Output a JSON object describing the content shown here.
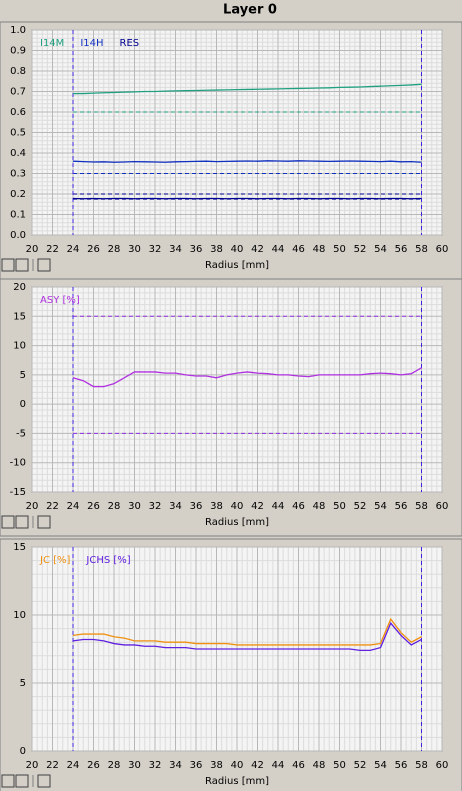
{
  "header": {
    "title": "Layer 0"
  },
  "chart_data": [
    {
      "type": "line",
      "xlabel": "Radius [mm]",
      "x": [
        24,
        25,
        26,
        27,
        28,
        29,
        30,
        31,
        32,
        33,
        34,
        35,
        36,
        37,
        38,
        39,
        40,
        41,
        42,
        43,
        44,
        45,
        46,
        47,
        48,
        49,
        50,
        51,
        52,
        53,
        54,
        55,
        56,
        57,
        58
      ],
      "series": [
        {
          "name": "I14M",
          "color": "#20a080",
          "values": [
            0.69,
            0.69,
            0.692,
            0.694,
            0.695,
            0.697,
            0.698,
            0.7,
            0.7,
            0.702,
            0.703,
            0.704,
            0.705,
            0.706,
            0.707,
            0.708,
            0.709,
            0.71,
            0.711,
            0.712,
            0.713,
            0.714,
            0.715,
            0.716,
            0.717,
            0.718,
            0.72,
            0.721,
            0.722,
            0.724,
            0.726,
            0.728,
            0.73,
            0.732,
            0.735
          ]
        },
        {
          "name": "I14H",
          "color": "#1030c0",
          "values": [
            0.36,
            0.358,
            0.356,
            0.357,
            0.355,
            0.356,
            0.358,
            0.357,
            0.356,
            0.355,
            0.357,
            0.358,
            0.359,
            0.36,
            0.358,
            0.359,
            0.36,
            0.361,
            0.36,
            0.362,
            0.361,
            0.36,
            0.362,
            0.361,
            0.36,
            0.359,
            0.36,
            0.361,
            0.36,
            0.359,
            0.358,
            0.36,
            0.357,
            0.358,
            0.355
          ]
        },
        {
          "name": "RES",
          "color": "#000090",
          "values": [
            0.178,
            0.177,
            0.178,
            0.177,
            0.178,
            0.178,
            0.177,
            0.178,
            0.178,
            0.177,
            0.178,
            0.178,
            0.177,
            0.178,
            0.178,
            0.177,
            0.178,
            0.178,
            0.177,
            0.178,
            0.178,
            0.177,
            0.178,
            0.178,
            0.177,
            0.178,
            0.178,
            0.177,
            0.178,
            0.178,
            0.177,
            0.178,
            0.178,
            0.177,
            0.178
          ]
        }
      ],
      "reference_lines": [
        {
          "value": 0.6,
          "color": "#20a080"
        },
        {
          "value": 0.3,
          "color": "#1030c0"
        },
        {
          "value": 0.2,
          "color": "#000090"
        },
        {
          "value": 0.175,
          "color": "#000090"
        }
      ],
      "x_markers": [
        24,
        58
      ],
      "marker_color": "#4020e0",
      "xlim": [
        20,
        60
      ],
      "xticks": [
        20,
        22,
        24,
        26,
        28,
        30,
        32,
        34,
        36,
        38,
        40,
        42,
        44,
        46,
        48,
        50,
        52,
        54,
        56,
        58,
        60
      ],
      "ylim": [
        0,
        1
      ],
      "yticks": [
        {
          "value": 0,
          "label": "0.0"
        },
        0.1,
        0.2,
        0.3,
        0.4,
        0.5,
        0.6,
        0.7,
        0.8,
        0.9,
        {
          "value": 1,
          "label": "1.0"
        }
      ],
      "grid": true
    },
    {
      "type": "line",
      "xlabel": "Radius [mm]",
      "x": [
        24,
        25,
        26,
        27,
        28,
        29,
        30,
        31,
        32,
        33,
        34,
        35,
        36,
        37,
        38,
        39,
        40,
        41,
        42,
        43,
        44,
        45,
        46,
        47,
        48,
        49,
        50,
        51,
        52,
        53,
        54,
        55,
        56,
        57,
        58
      ],
      "series": [
        {
          "name": "ASY [%]",
          "color": "#b030e0",
          "values": [
            4.5,
            4,
            3,
            3,
            3.5,
            4.5,
            5.5,
            5.5,
            5.5,
            5.3,
            5.3,
            5,
            4.8,
            4.8,
            4.5,
            5,
            5.3,
            5.5,
            5.3,
            5.2,
            5,
            5,
            4.8,
            4.7,
            5,
            5,
            5,
            5,
            5,
            5.2,
            5.3,
            5.2,
            5,
            5.2,
            6.2
          ]
        }
      ],
      "reference_lines": [
        {
          "value": 15,
          "color": "#9030e0"
        },
        {
          "value": -5,
          "color": "#9030e0"
        }
      ],
      "x_markers": [
        24,
        58
      ],
      "marker_color": "#4020e0",
      "xlim": [
        20,
        60
      ],
      "xticks": [
        20,
        22,
        24,
        26,
        28,
        30,
        32,
        34,
        36,
        38,
        40,
        42,
        44,
        46,
        48,
        50,
        52,
        54,
        56,
        58,
        60
      ],
      "ylim": [
        -15,
        20
      ],
      "yticks": [
        -15,
        -10,
        -5,
        0,
        5,
        10,
        15,
        20
      ],
      "grid": true
    },
    {
      "type": "line",
      "xlabel": "Radius [mm]",
      "x": [
        24,
        25,
        26,
        27,
        28,
        29,
        30,
        31,
        32,
        33,
        34,
        35,
        36,
        37,
        38,
        39,
        40,
        41,
        42,
        43,
        44,
        45,
        46,
        47,
        48,
        49,
        50,
        51,
        52,
        53,
        54,
        55,
        56,
        57,
        58
      ],
      "series": [
        {
          "name": "JC [%]",
          "color": "#f09010",
          "values": [
            8.5,
            8.6,
            8.6,
            8.6,
            8.4,
            8.3,
            8.1,
            8.1,
            8.1,
            8.0,
            8.0,
            8.0,
            7.9,
            7.9,
            7.9,
            7.9,
            7.8,
            7.8,
            7.8,
            7.8,
            7.8,
            7.8,
            7.8,
            7.8,
            7.8,
            7.8,
            7.8,
            7.8,
            7.8,
            7.8,
            7.9,
            9.7,
            8.7,
            8.0,
            8.4
          ]
        },
        {
          "name": "JCHS [%]",
          "color": "#6020e0",
          "values": [
            8.1,
            8.2,
            8.2,
            8.1,
            7.9,
            7.8,
            7.8,
            7.7,
            7.7,
            7.6,
            7.6,
            7.6,
            7.5,
            7.5,
            7.5,
            7.5,
            7.5,
            7.5,
            7.5,
            7.5,
            7.5,
            7.5,
            7.5,
            7.5,
            7.5,
            7.5,
            7.5,
            7.5,
            7.4,
            7.4,
            7.6,
            9.4,
            8.5,
            7.8,
            8.2
          ]
        }
      ],
      "reference_lines": [],
      "x_markers": [
        24,
        58
      ],
      "marker_color": "#4020e0",
      "xlim": [
        20,
        60
      ],
      "xticks": [
        20,
        22,
        24,
        26,
        28,
        30,
        32,
        34,
        36,
        38,
        40,
        42,
        44,
        46,
        48,
        50,
        52,
        54,
        56,
        58,
        60
      ],
      "ylim": [
        0,
        15
      ],
      "yticks": [
        0,
        5,
        10,
        15
      ],
      "grid": true
    }
  ]
}
